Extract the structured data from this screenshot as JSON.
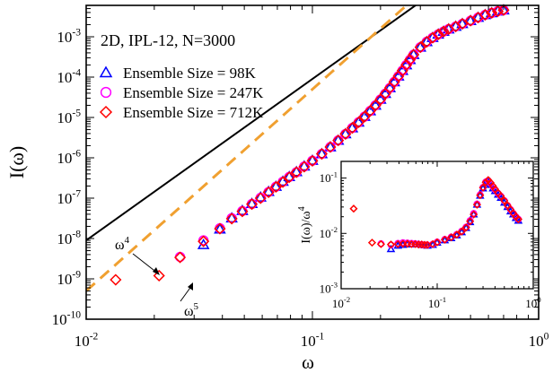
{
  "chart_data": [
    {
      "type": "scatter",
      "title": "2D, IPL-12, N=3000",
      "xlabel": "ω",
      "ylabel": "I(ω)",
      "xscale": "log",
      "yscale": "log",
      "xlim": [
        0.01,
        1
      ],
      "ylim": [
        1e-10,
        0.006
      ],
      "x_ticks": [
        {
          "value": 0.01,
          "base": "10",
          "exp": "-2"
        },
        {
          "value": 0.1,
          "base": "10",
          "exp": "-1"
        },
        {
          "value": 1,
          "base": "10",
          "exp": "0"
        }
      ],
      "y_ticks": [
        {
          "value": 1e-10,
          "base": "10",
          "exp": "-10"
        },
        {
          "value": 1e-09,
          "base": "10",
          "exp": "-9"
        },
        {
          "value": 1e-08,
          "base": "10",
          "exp": "-8"
        },
        {
          "value": 1e-07,
          "base": "10",
          "exp": "-7"
        },
        {
          "value": 1e-06,
          "base": "10",
          "exp": "-6"
        },
        {
          "value": 1e-05,
          "base": "10",
          "exp": "-5"
        },
        {
          "value": 0.0001,
          "base": "10",
          "exp": "-4"
        },
        {
          "value": 0.001,
          "base": "10",
          "exp": "-3"
        }
      ],
      "legend_position": "top-left",
      "series": [
        {
          "name": "Ensemble Size = 98K",
          "marker": "triangle",
          "color": "#0000ff",
          "x": [
            0.033,
            0.039,
            0.044,
            0.049,
            0.054,
            0.059,
            0.064,
            0.069,
            0.074,
            0.079,
            0.085,
            0.092,
            0.1,
            0.11,
            0.12,
            0.13,
            0.14,
            0.15,
            0.16,
            0.17,
            0.18,
            0.19,
            0.2,
            0.21,
            0.22,
            0.23,
            0.24,
            0.25,
            0.26,
            0.27,
            0.28,
            0.3,
            0.32,
            0.34,
            0.36,
            0.38,
            0.4,
            0.43,
            0.46,
            0.5,
            0.54,
            0.58,
            0.62,
            0.66,
            0.7
          ],
          "y": [
            7e-09,
            1.7e-08,
            3.2e-08,
            4.9e-08,
            7.3e-08,
            1.05e-07,
            1.45e-07,
            1.95e-07,
            2.6e-07,
            3.4e-07,
            4.5e-07,
            6.2e-07,
            8.6e-07,
            1.25e-06,
            1.85e-06,
            2.7e-06,
            3.9e-06,
            5.5e-06,
            7.6e-06,
            1.05e-05,
            1.45e-05,
            2e-05,
            2.8e-05,
            3.9e-05,
            5.4e-05,
            7.6e-05,
            0.000105,
            0.000145,
            0.0002,
            0.00027,
            0.00036,
            0.00055,
            0.00075,
            0.00095,
            0.00115,
            0.00135,
            0.00155,
            0.0018,
            0.0021,
            0.0025,
            0.003,
            0.0035,
            0.0039,
            0.0043,
            0.0046
          ]
        },
        {
          "name": "Ensemble Size = 247K",
          "marker": "circle",
          "color": "#ff00ff",
          "x": [
            0.026,
            0.033,
            0.039,
            0.044,
            0.049,
            0.054,
            0.059,
            0.064,
            0.069,
            0.074,
            0.079,
            0.085,
            0.092,
            0.1,
            0.11,
            0.12,
            0.13,
            0.14,
            0.15,
            0.16,
            0.17,
            0.18,
            0.19,
            0.2,
            0.21,
            0.22,
            0.23,
            0.24,
            0.25,
            0.26,
            0.27,
            0.28,
            0.3,
            0.32,
            0.34,
            0.36,
            0.38,
            0.4,
            0.43,
            0.46,
            0.5,
            0.54,
            0.58,
            0.62,
            0.66,
            0.7
          ],
          "y": [
            3.5e-09,
            9e-09,
            1.8e-08,
            3.2e-08,
            4.8e-08,
            7.2e-08,
            1.02e-07,
            1.42e-07,
            1.92e-07,
            2.55e-07,
            3.35e-07,
            4.4e-07,
            6.1e-07,
            8.5e-07,
            1.25e-06,
            1.85e-06,
            2.7e-06,
            3.9e-06,
            5.5e-06,
            7.6e-06,
            1.05e-05,
            1.45e-05,
            2e-05,
            2.8e-05,
            3.9e-05,
            5.4e-05,
            7.6e-05,
            0.000105,
            0.000145,
            0.0002,
            0.00027,
            0.00036,
            0.00055,
            0.00075,
            0.00095,
            0.00115,
            0.00135,
            0.00155,
            0.0018,
            0.0021,
            0.0025,
            0.003,
            0.0035,
            0.0039,
            0.0043,
            0.0046
          ]
        },
        {
          "name": "Ensemble Size = 712K",
          "marker": "diamond",
          "color": "#ff0000",
          "x": [
            0.0135,
            0.021,
            0.026,
            0.033,
            0.039,
            0.044,
            0.049,
            0.054,
            0.059,
            0.064,
            0.069,
            0.074,
            0.079,
            0.085,
            0.092,
            0.1,
            0.11,
            0.12,
            0.13,
            0.14,
            0.15,
            0.16,
            0.17,
            0.18,
            0.19,
            0.2,
            0.21,
            0.22,
            0.23,
            0.24,
            0.25,
            0.26,
            0.27,
            0.28,
            0.3,
            0.32,
            0.34,
            0.36,
            0.38,
            0.4,
            0.43,
            0.46,
            0.5,
            0.54,
            0.58,
            0.62,
            0.66,
            0.7
          ],
          "y": [
            9.5e-10,
            1.2e-09,
            3.4e-09,
            8.5e-09,
            1.75e-08,
            3.1e-08,
            4.7e-08,
            7.1e-08,
            1e-07,
            1.4e-07,
            1.9e-07,
            2.5e-07,
            3.3e-07,
            4.4e-07,
            6e-07,
            8.4e-07,
            1.25e-06,
            1.85e-06,
            2.7e-06,
            3.9e-06,
            5.5e-06,
            7.6e-06,
            1.05e-05,
            1.45e-05,
            2e-05,
            2.8e-05,
            3.9e-05,
            5.4e-05,
            7.6e-05,
            0.000105,
            0.000145,
            0.0002,
            0.00027,
            0.00036,
            0.00055,
            0.00075,
            0.00095,
            0.00115,
            0.00135,
            0.00155,
            0.0018,
            0.0021,
            0.0025,
            0.003,
            0.0035,
            0.0039,
            0.0043,
            0.0046
          ]
        }
      ],
      "reference_lines": [
        {
          "label_base": "ω",
          "label_exp": "4",
          "power": 4,
          "coefficient": 0.9,
          "color": "#000000",
          "style": "solid"
        },
        {
          "label_base": "ω",
          "label_exp": "5",
          "power": 5,
          "coefficient": 5.0,
          "color": "#f0a030",
          "style": "dashed"
        }
      ],
      "grid": false
    },
    {
      "type": "scatter",
      "title": "",
      "xlabel": "",
      "ylabel": "I(ω)/ω",
      "ylabel_exp": "4",
      "xscale": "log",
      "yscale": "log",
      "xlim": [
        0.01,
        1
      ],
      "ylim": [
        0.001,
        0.2
      ],
      "x_ticks": [
        {
          "value": 0.01,
          "base": "10",
          "exp": "-2"
        },
        {
          "value": 0.1,
          "base": "10",
          "exp": "-1"
        },
        {
          "value": 1,
          "base": "10",
          "exp": "0"
        }
      ],
      "y_ticks": [
        {
          "value": 0.001,
          "base": "10",
          "exp": "-3"
        },
        {
          "value": 0.01,
          "base": "10",
          "exp": "-2"
        },
        {
          "value": 0.1,
          "base": "10",
          "exp": "-1"
        }
      ],
      "series": [
        {
          "name": "Ensemble Size = 98K",
          "marker": "triangle",
          "color": "#0000ff",
          "x": [
            0.033,
            0.039,
            0.044,
            0.049,
            0.054,
            0.059,
            0.064,
            0.069,
            0.074,
            0.079,
            0.09,
            0.1,
            0.12,
            0.14,
            0.16,
            0.18,
            0.2,
            0.22,
            0.24,
            0.26,
            0.28,
            0.3,
            0.32,
            0.34,
            0.36,
            0.38,
            0.4,
            0.43,
            0.46,
            0.5,
            0.54,
            0.58,
            0.62,
            0.66,
            0.7
          ],
          "y": [
            0.0052,
            0.006,
            0.0062,
            0.0063,
            0.0063,
            0.0063,
            0.0063,
            0.0062,
            0.0061,
            0.006,
            0.0062,
            0.0068,
            0.0075,
            0.0082,
            0.0092,
            0.0105,
            0.0125,
            0.016,
            0.022,
            0.033,
            0.048,
            0.065,
            0.08,
            0.085,
            0.075,
            0.065,
            0.058,
            0.05,
            0.044,
            0.036,
            0.03,
            0.025,
            0.022,
            0.019,
            0.017
          ]
        },
        {
          "name": "Ensemble Size = 247K",
          "marker": "circle",
          "color": "#ff00ff",
          "x": [
            0.026,
            0.033,
            0.039,
            0.044,
            0.049,
            0.054,
            0.059,
            0.064,
            0.069,
            0.074,
            0.079,
            0.09,
            0.1,
            0.12,
            0.14,
            0.16,
            0.18,
            0.2,
            0.22,
            0.24,
            0.26,
            0.28,
            0.3,
            0.32,
            0.34,
            0.36,
            0.38,
            0.4,
            0.43,
            0.46,
            0.5,
            0.54,
            0.58,
            0.62,
            0.66,
            0.7
          ],
          "y": [
            0.0065,
            0.0062,
            0.0066,
            0.0068,
            0.0067,
            0.0066,
            0.0065,
            0.0064,
            0.0063,
            0.0062,
            0.0062,
            0.0064,
            0.007,
            0.0078,
            0.0086,
            0.0096,
            0.011,
            0.013,
            0.017,
            0.023,
            0.034,
            0.05,
            0.068,
            0.085,
            0.09,
            0.08,
            0.07,
            0.062,
            0.053,
            0.047,
            0.039,
            0.032,
            0.027,
            0.023,
            0.02,
            0.018
          ]
        },
        {
          "name": "Ensemble Size = 712K",
          "marker": "diamond",
          "color": "#ff0000",
          "x": [
            0.0135,
            0.021,
            0.026,
            0.033,
            0.039,
            0.044,
            0.049,
            0.054,
            0.059,
            0.064,
            0.069,
            0.074,
            0.079,
            0.09,
            0.1,
            0.12,
            0.14,
            0.16,
            0.18,
            0.2,
            0.22,
            0.24,
            0.26,
            0.28,
            0.3,
            0.32,
            0.34,
            0.36,
            0.38,
            0.4,
            0.43,
            0.46,
            0.5,
            0.54,
            0.58,
            0.62,
            0.66,
            0.7
          ],
          "y": [
            0.028,
            0.0068,
            0.0064,
            0.0063,
            0.0064,
            0.0065,
            0.0065,
            0.0064,
            0.0064,
            0.0063,
            0.0063,
            0.0062,
            0.0062,
            0.0064,
            0.0069,
            0.0077,
            0.0085,
            0.0095,
            0.0108,
            0.0128,
            0.0165,
            0.022,
            0.033,
            0.049,
            0.067,
            0.084,
            0.092,
            0.082,
            0.072,
            0.063,
            0.054,
            0.047,
            0.039,
            0.032,
            0.027,
            0.023,
            0.02,
            0.018
          ]
        }
      ],
      "grid": false
    }
  ]
}
